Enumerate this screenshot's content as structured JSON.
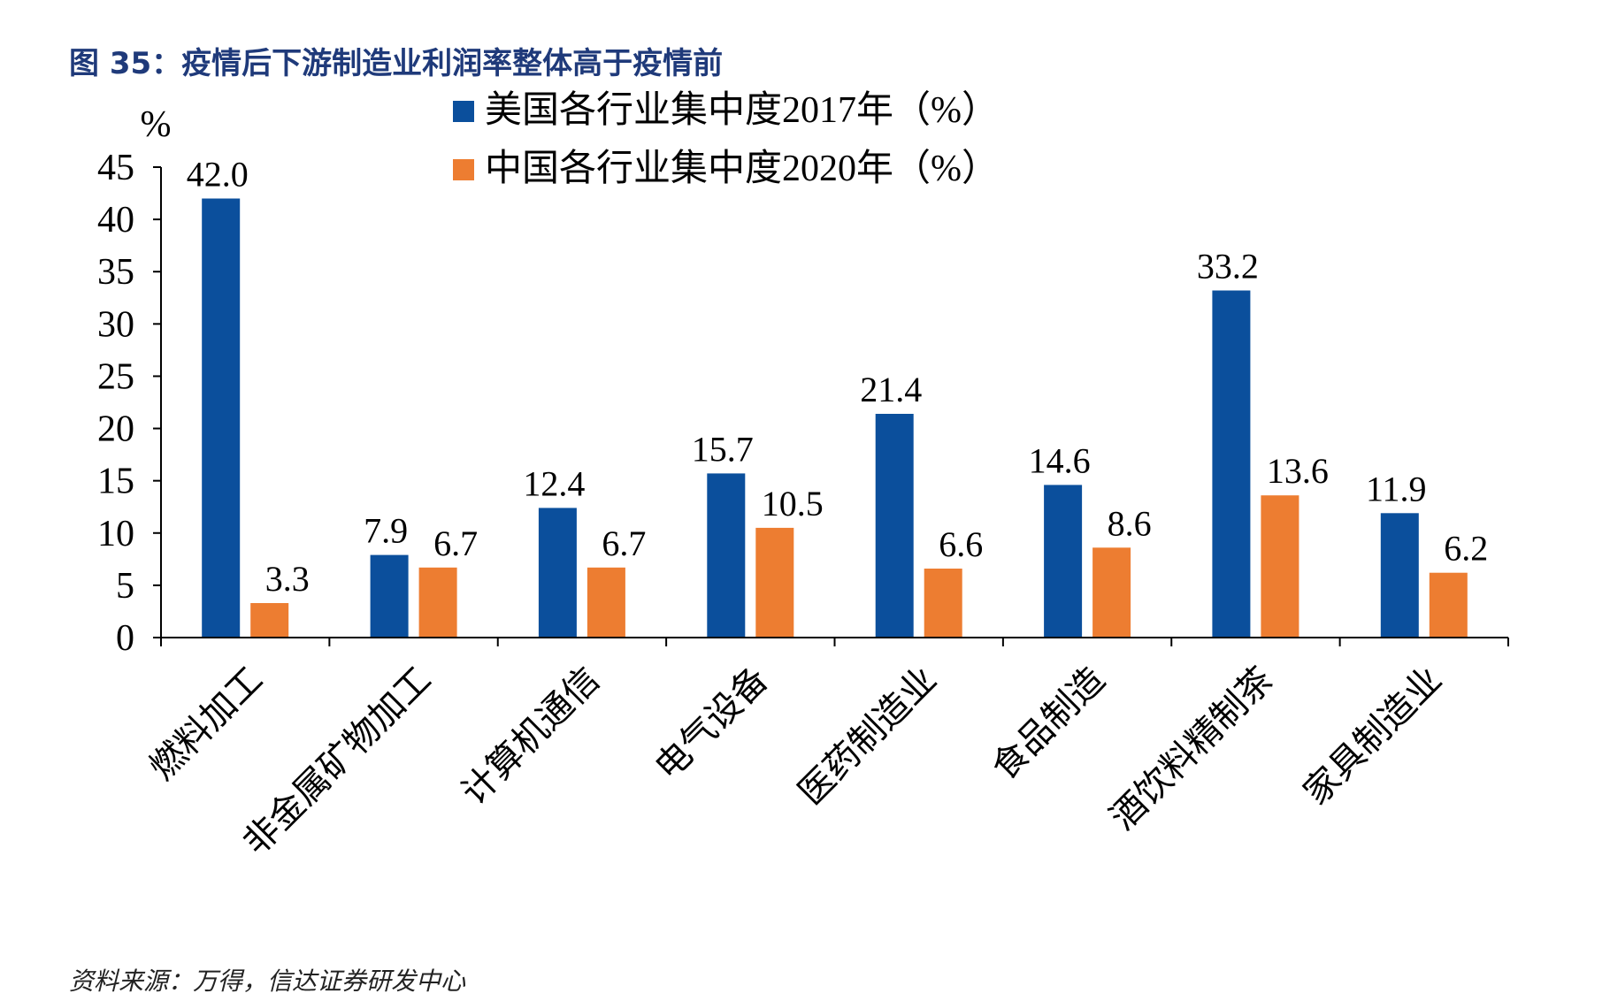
{
  "figure_title": "图 35：疫情后下游制造业利润率整体高于疫情前",
  "source_note": "资料来源：万得，信达证券研发中心",
  "colors": {
    "series_us": "#0b4f9c",
    "series_cn": "#ed7d31",
    "axis": "#000000",
    "title": "#1f3a7a"
  },
  "chart_data": {
    "type": "bar",
    "title": "图 35：疫情后下游制造业利润率整体高于疫情前",
    "ylabel": "%",
    "xlabel": "",
    "ylim": [
      0,
      45
    ],
    "yticks": [
      0,
      5,
      10,
      15,
      20,
      25,
      30,
      35,
      40,
      45
    ],
    "grid": false,
    "legend_position": "top-center",
    "categories": [
      "燃料加工",
      "非金属矿物加工",
      "计算机通信",
      "电气设备",
      "医药制造业",
      "食品制造",
      "酒饮料精制茶",
      "家具制造业"
    ],
    "series": [
      {
        "name": "美国各行业集中度2017年（%）",
        "color": "#0b4f9c",
        "values": [
          42.0,
          7.9,
          12.4,
          15.7,
          21.4,
          14.6,
          33.2,
          11.9
        ],
        "labels": [
          "42.0",
          "7.9",
          "12.4",
          "15.7",
          "21.4",
          "14.6",
          "33.2",
          "11.9"
        ]
      },
      {
        "name": "中国各行业集中度2020年（%）",
        "color": "#ed7d31",
        "values": [
          3.3,
          6.7,
          6.7,
          10.5,
          6.6,
          8.6,
          13.6,
          6.2
        ],
        "labels": [
          "3.3",
          "6.7",
          "6.7",
          "10.5",
          "6.6",
          "8.6",
          "13.6",
          "6.2"
        ]
      }
    ]
  }
}
